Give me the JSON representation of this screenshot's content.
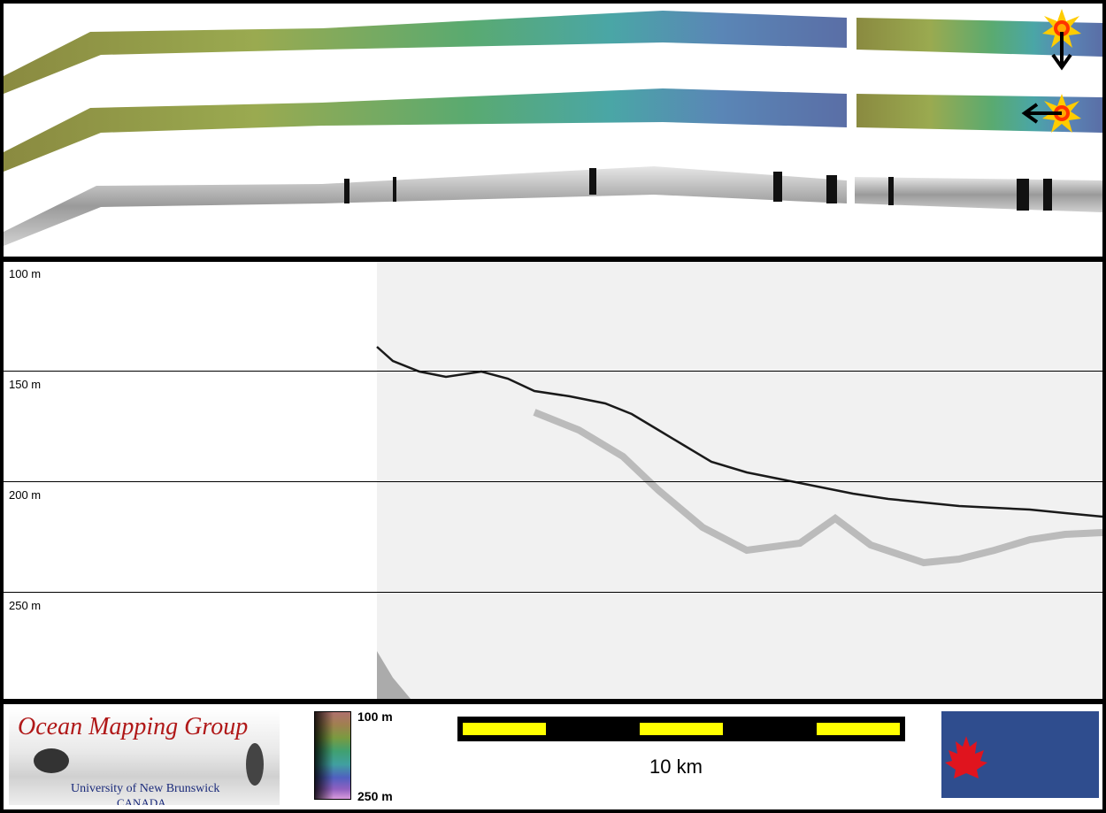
{
  "profile": {
    "depth_labels": [
      "100 m",
      "150 m",
      "200 m",
      "250 m"
    ]
  },
  "footer": {
    "omg_title": "Ocean Mapping Group",
    "omg_university": "University of New Brunswick",
    "omg_country": "CANADA",
    "colorbar_top": "100 m",
    "colorbar_bottom": "250 m",
    "scale_label": "10 km",
    "arcticnet_logo": "ArcticNet"
  },
  "colors": {
    "scale_bar": "#ffff00",
    "arcticnet_bg": "#2f4d8e",
    "omg_title": "#b01818"
  },
  "icons": {
    "sun_illumination_north": "sun-icon",
    "sun_illumination_east": "sun-icon"
  }
}
